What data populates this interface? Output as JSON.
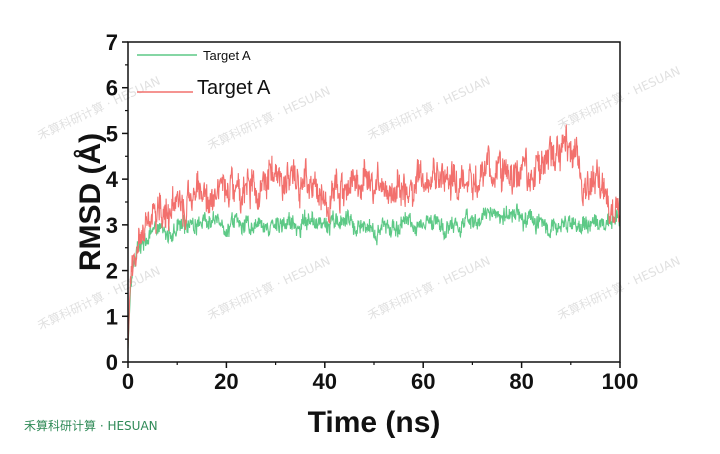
{
  "watermark": {
    "brand_text": "禾算科研计算 · HESUAN",
    "repeat_text": "禾算科研计算 · HESUAN"
  },
  "colors": {
    "series1": "#5dc986",
    "series2": "#f2706d",
    "axis": "#111111"
  },
  "chart_data": {
    "type": "line",
    "title": "",
    "xlabel": "Time (ns)",
    "ylabel": "RMSD (Å)",
    "xlim": [
      0,
      100
    ],
    "ylim": [
      0,
      7
    ],
    "xticks": [
      "0",
      "20",
      "40",
      "60",
      "80",
      "100"
    ],
    "yticks": [
      "0",
      "1",
      "2",
      "3",
      "4",
      "5",
      "6",
      "7"
    ],
    "grid": false,
    "legend_position": "top-left",
    "series": [
      {
        "name": "Target A",
        "color": "#5dc986",
        "x": [
          0,
          0.5,
          1,
          2,
          3,
          5,
          8,
          10,
          15,
          20,
          25,
          30,
          35,
          40,
          45,
          50,
          55,
          60,
          65,
          70,
          75,
          80,
          85,
          90,
          95,
          100
        ],
        "y": [
          0.3,
          1.6,
          2.2,
          2.5,
          2.6,
          2.8,
          2.9,
          3.0,
          2.9,
          3.0,
          3.0,
          3.0,
          3.0,
          3.0,
          3.1,
          2.9,
          3.0,
          3.1,
          3.0,
          3.1,
          3.3,
          3.1,
          3.0,
          3.0,
          3.1,
          3.2
        ]
      },
      {
        "name": "Target A",
        "color": "#f2706d",
        "x": [
          0,
          0.5,
          1,
          2,
          3,
          5,
          8,
          10,
          15,
          20,
          25,
          30,
          35,
          40,
          45,
          50,
          55,
          60,
          65,
          70,
          75,
          80,
          85,
          88,
          90,
          92,
          95,
          100
        ],
        "y": [
          0.3,
          1.8,
          2.3,
          2.6,
          3.0,
          3.3,
          3.2,
          3.3,
          3.7,
          3.8,
          3.8,
          4.0,
          4.0,
          3.6,
          3.8,
          3.9,
          3.8,
          4.0,
          4.1,
          4.0,
          4.3,
          4.0,
          4.5,
          4.8,
          4.7,
          4.0,
          3.8,
          3.6
        ]
      }
    ]
  }
}
